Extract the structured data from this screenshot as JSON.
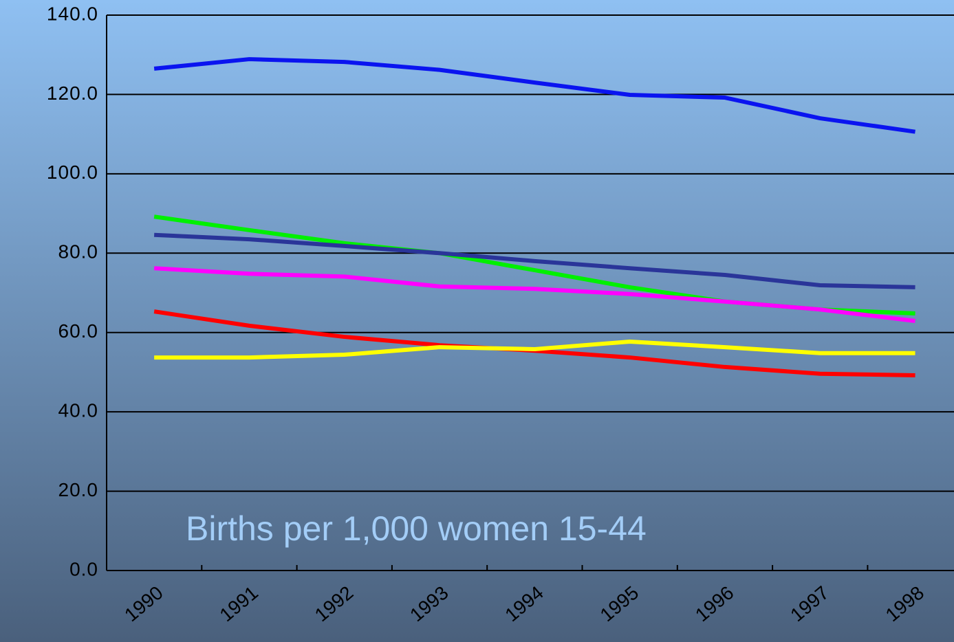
{
  "chart_data": {
    "type": "line",
    "annotation": "Births per 1,000 women 15-44",
    "categories": [
      "1990",
      "1991",
      "1992",
      "1993",
      "1994",
      "1995",
      "1996",
      "1997",
      "1998"
    ],
    "series": [
      {
        "color": "#0a14f0",
        "values": [
          126.5,
          128.9,
          128.2,
          126.2,
          123,
          119.9,
          119.2,
          114,
          110.6
        ]
      },
      {
        "color": "#00f000",
        "values": [
          89.2,
          85.8,
          82.5,
          80,
          75.7,
          71.4,
          67.8,
          65.8,
          64.8
        ]
      },
      {
        "color": "#2a3599",
        "values": [
          84.6,
          83.5,
          81.8,
          80,
          78,
          76.2,
          74.5,
          71.9,
          71.4
        ]
      },
      {
        "color": "#ff00ff",
        "values": [
          76.2,
          74.8,
          74.1,
          71.6,
          71,
          69.7,
          67.8,
          65.8,
          62.9
        ]
      },
      {
        "color": "#ff0000",
        "values": [
          65.3,
          61.7,
          58.9,
          56.8,
          55.4,
          53.7,
          51.3,
          49.6,
          49.2
        ]
      },
      {
        "color": "#ffff00",
        "values": [
          53.7,
          53.7,
          54.4,
          56.3,
          55.8,
          57.7,
          56.3,
          54.8,
          54.8
        ]
      }
    ],
    "ylim": [
      0,
      140
    ],
    "yticks": [
      {
        "value": 0,
        "label": "0.0"
      },
      {
        "value": 20,
        "label": "20.0"
      },
      {
        "value": 40,
        "label": "40.0"
      },
      {
        "value": 60,
        "label": "60.0"
      },
      {
        "value": 80,
        "label": "80.0"
      },
      {
        "value": 100,
        "label": "100.0"
      },
      {
        "value": 120,
        "label": "120.0"
      },
      {
        "value": 140,
        "label": "140.0"
      }
    ],
    "grid": true
  }
}
